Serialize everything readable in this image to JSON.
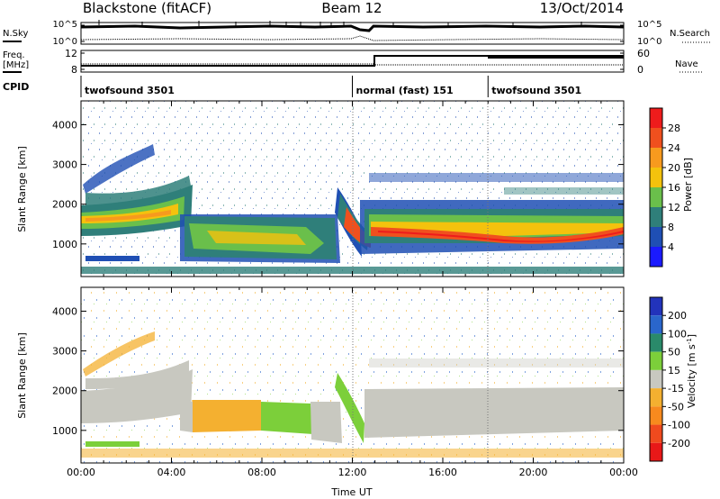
{
  "header": {
    "radar": "Blackstone (fitACF)",
    "beam": "Beam 12",
    "date": "13/Oct/2014"
  },
  "status_panels": {
    "nsky_label": "N.Sky",
    "nsearch_label": "N.Search",
    "count_ticks_left": [
      "10^5",
      "10^0"
    ],
    "count_ticks_right": [
      "10^5",
      "10^0"
    ],
    "freq_label_1": "Freq.",
    "freq_label_2": "[MHz]",
    "freq_ticks": [
      "12",
      "8"
    ],
    "nave_label": "Nave",
    "nave_ticks": [
      "60",
      "0"
    ],
    "cpid_label": "CPID",
    "cpid_segments": [
      {
        "label": "twofsound 3501",
        "start": 0,
        "end": 12.0
      },
      {
        "label": "normal (fast) 151",
        "start": 12.0,
        "end": 18.0
      },
      {
        "label": "twofsound 3501",
        "start": 18.0,
        "end": 24.0
      }
    ]
  },
  "chart_data": [
    {
      "type": "heatmap",
      "name": "power",
      "ylabel": "Slant Range [km]",
      "xlim": [
        0,
        24
      ],
      "ylim": [
        180,
        4600
      ],
      "yticks": [
        1000,
        2000,
        3000,
        4000
      ],
      "colorbar": {
        "label": "Power [dB]",
        "ticks": [
          "28",
          "24",
          "20",
          "16",
          "12",
          "8",
          "4"
        ],
        "bins": [
          {
            "range": [
              0,
              4
            ],
            "color": "#1a1aff"
          },
          {
            "range": [
              4,
              8
            ],
            "color": "#1f4fb4"
          },
          {
            "range": [
              8,
              12
            ],
            "color": "#2f7f7a"
          },
          {
            "range": [
              12,
              16
            ],
            "color": "#6abf4b"
          },
          {
            "range": [
              16,
              20
            ],
            "color": "#f4c20d"
          },
          {
            "range": [
              20,
              24
            ],
            "color": "#f79a1e"
          },
          {
            "range": [
              24,
              28
            ],
            "color": "#f0501e"
          },
          {
            "range": [
              28,
              32
            ],
            "color": "#ee1c1c"
          }
        ]
      }
    },
    {
      "type": "heatmap",
      "name": "velocity",
      "ylabel": "Slant Range [km]",
      "xlabel": "Time UT",
      "xlim": [
        0,
        24
      ],
      "ylim": [
        180,
        4600
      ],
      "yticks": [
        1000,
        2000,
        3000,
        4000
      ],
      "xticks": [
        "00:00",
        "04:00",
        "08:00",
        "12:00",
        "16:00",
        "20:00",
        "00:00"
      ],
      "colorbar": {
        "label": "Velocity [m s",
        "label_sup": "-1",
        "label_end": "]",
        "ticks": [
          "200",
          "100",
          "50",
          "15",
          "-15",
          "-50",
          "-100",
          "-200"
        ],
        "bins": [
          {
            "range": [
              200,
              300
            ],
            "color": "#2233bb"
          },
          {
            "range": [
              100,
              200
            ],
            "color": "#2a66cc"
          },
          {
            "range": [
              50,
              100
            ],
            "color": "#2a8a6a"
          },
          {
            "range": [
              15,
              50
            ],
            "color": "#7ccf3a"
          },
          {
            "range": [
              -15,
              15
            ],
            "color": "#c8c8c0"
          },
          {
            "range": [
              -50,
              -15
            ],
            "color": "#f4b030"
          },
          {
            "range": [
              -100,
              -50
            ],
            "color": "#f78a1e"
          },
          {
            "range": [
              -200,
              -100
            ],
            "color": "#f04a1e"
          },
          {
            "range": [
              -300,
              -200
            ],
            "color": "#e81818"
          }
        ]
      }
    }
  ]
}
